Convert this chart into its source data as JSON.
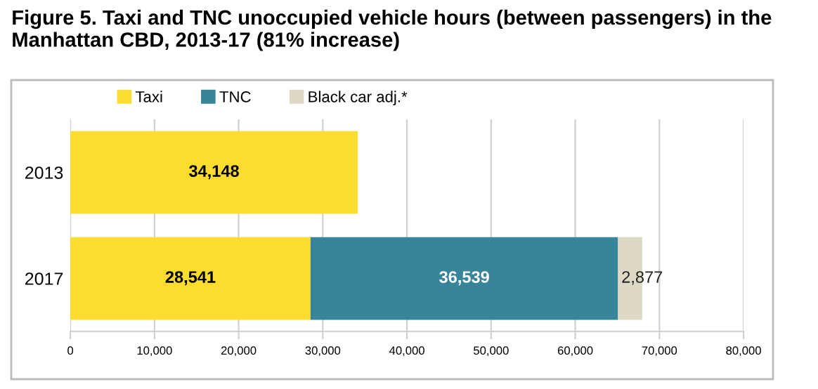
{
  "chart_data": {
    "type": "bar",
    "orientation": "horizontal",
    "stacked": true,
    "title": "Figure 5. Taxi and TNC unoccupied vehicle hours (between passengers) in the Manhattan CBD, 2013-17 (81% increase)",
    "categories": [
      "2013",
      "2017"
    ],
    "series": [
      {
        "name": "Taxi",
        "color": "#fcdc2f",
        "values": [
          34148,
          28541
        ],
        "value_labels": [
          "34,148",
          "28,541"
        ]
      },
      {
        "name": "TNC",
        "color": "#388499",
        "values": [
          null,
          36539
        ],
        "value_labels": [
          null,
          "36,539"
        ]
      },
      {
        "name": "Black car adj.*",
        "color": "#ddd9c5",
        "values": [
          null,
          2877
        ],
        "value_labels": [
          null,
          "2,877"
        ]
      }
    ],
    "xlim": [
      0,
      80000
    ],
    "xticks": [
      {
        "value": 0,
        "label": "0"
      },
      {
        "value": 10000,
        "label": "10,000"
      },
      {
        "value": 20000,
        "label": "20,000"
      },
      {
        "value": 30000,
        "label": "30,000"
      },
      {
        "value": 40000,
        "label": "40,000"
      },
      {
        "value": 50000,
        "label": "50,000"
      },
      {
        "value": 60000,
        "label": "60,000"
      },
      {
        "value": 70000,
        "label": "70,000"
      },
      {
        "value": 80000,
        "label": "80,000"
      }
    ],
    "grid": "x",
    "legend": "top"
  }
}
